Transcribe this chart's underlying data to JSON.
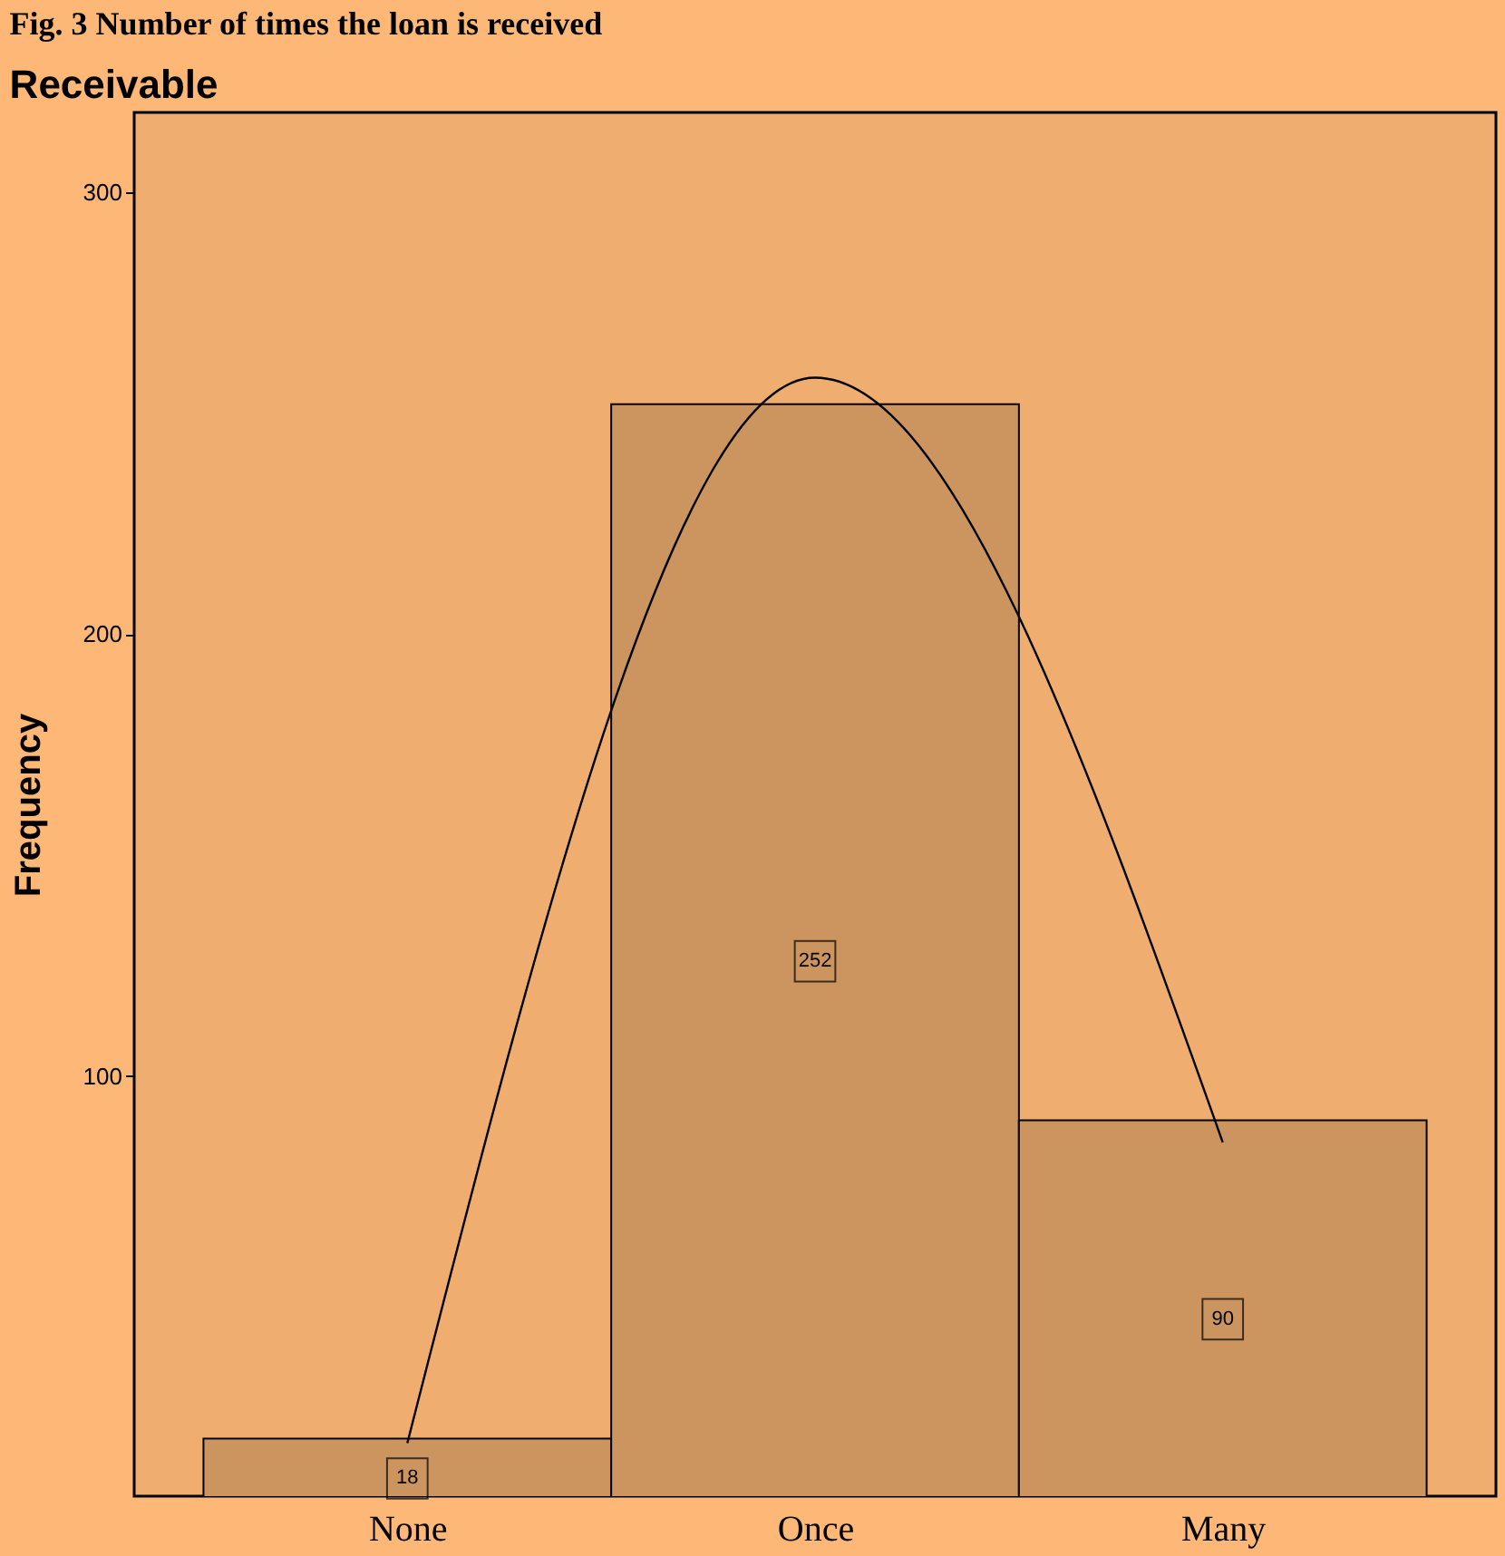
{
  "chart_data": {
    "type": "bar",
    "title": "Fig. 3 Number of times the loan is received",
    "subtitle": "Receivable",
    "ylabel": "Frequency",
    "categories": [
      "None",
      "Once",
      "Many"
    ],
    "values": [
      18,
      252,
      90
    ],
    "color": "#cc9560",
    "value_labels": [
      "18",
      "252",
      "90"
    ],
    "ylim": [
      5,
      318
    ],
    "yticks": [
      100,
      200,
      300
    ],
    "grid": false,
    "series": [
      {
        "type": "line",
        "color": "#000000",
        "values": [
          17,
          258,
          85
        ]
      }
    ]
  }
}
